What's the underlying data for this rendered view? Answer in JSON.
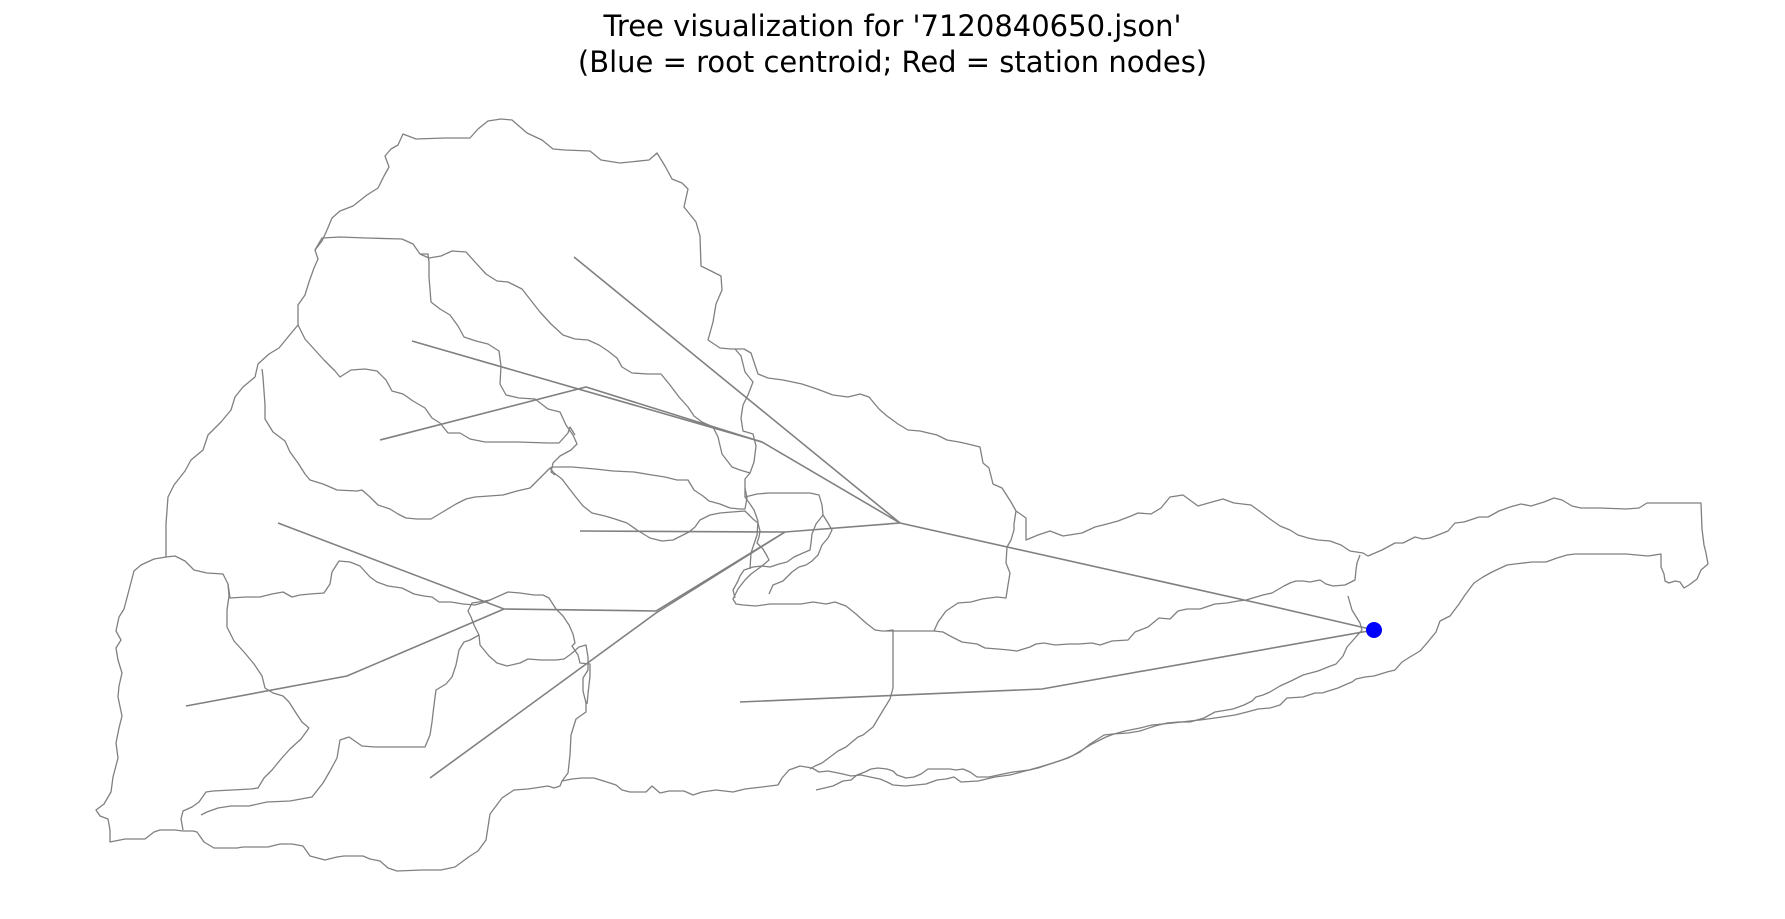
{
  "figure": {
    "title_line1": "Tree visualization for '7120840650.json'",
    "title_line2": "(Blue = root centroid; Red = station nodes)"
  },
  "colors": {
    "boundary": "#808080",
    "edge": "#808080",
    "root_node": "#0000ff",
    "station_node": "#ff0000",
    "background": "#ffffff"
  },
  "tree": {
    "root": "root",
    "nodes": [
      {
        "id": "root",
        "kind": "root"
      },
      {
        "id": "n1",
        "kind": "centroid"
      },
      {
        "id": "n2",
        "kind": "centroid"
      },
      {
        "id": "n3",
        "kind": "centroid"
      },
      {
        "id": "n4",
        "kind": "centroid"
      },
      {
        "id": "n5",
        "kind": "centroid"
      },
      {
        "id": "n6",
        "kind": "centroid"
      },
      {
        "id": "n7",
        "kind": "centroid"
      },
      {
        "id": "n8",
        "kind": "centroid"
      },
      {
        "id": "n9",
        "kind": "centroid"
      },
      {
        "id": "n10",
        "kind": "centroid"
      },
      {
        "id": "n11",
        "kind": "centroid"
      },
      {
        "id": "n12",
        "kind": "centroid"
      },
      {
        "id": "n13",
        "kind": "centroid"
      },
      {
        "id": "n14",
        "kind": "centroid"
      },
      {
        "id": "n15",
        "kind": "centroid"
      },
      {
        "id": "n16",
        "kind": "centroid"
      },
      {
        "id": "n17",
        "kind": "centroid"
      },
      {
        "id": "n18",
        "kind": "centroid"
      }
    ],
    "edges": [
      {
        "from": "root",
        "to": "n1"
      },
      {
        "from": "n1",
        "to": "n2"
      },
      {
        "from": "n2",
        "to": "n3"
      },
      {
        "from": "n2",
        "to": "n4"
      },
      {
        "from": "n4",
        "to": "n5"
      },
      {
        "from": "n5",
        "to": "n6"
      },
      {
        "from": "n2",
        "to": "n7"
      },
      {
        "from": "n7",
        "to": "n8"
      },
      {
        "from": "n8",
        "to": "n9"
      },
      {
        "from": "n9",
        "to": "n10"
      },
      {
        "from": "n9",
        "to": "n11"
      },
      {
        "from": "n10",
        "to": "n12"
      },
      {
        "from": "n12",
        "to": "n13"
      },
      {
        "from": "n2",
        "to": "n14"
      },
      {
        "from": "n1",
        "to": "n15"
      },
      {
        "from": "root",
        "to": "n16"
      },
      {
        "from": "n16",
        "to": "n17"
      },
      {
        "from": "n7",
        "to": "n18"
      }
    ]
  }
}
